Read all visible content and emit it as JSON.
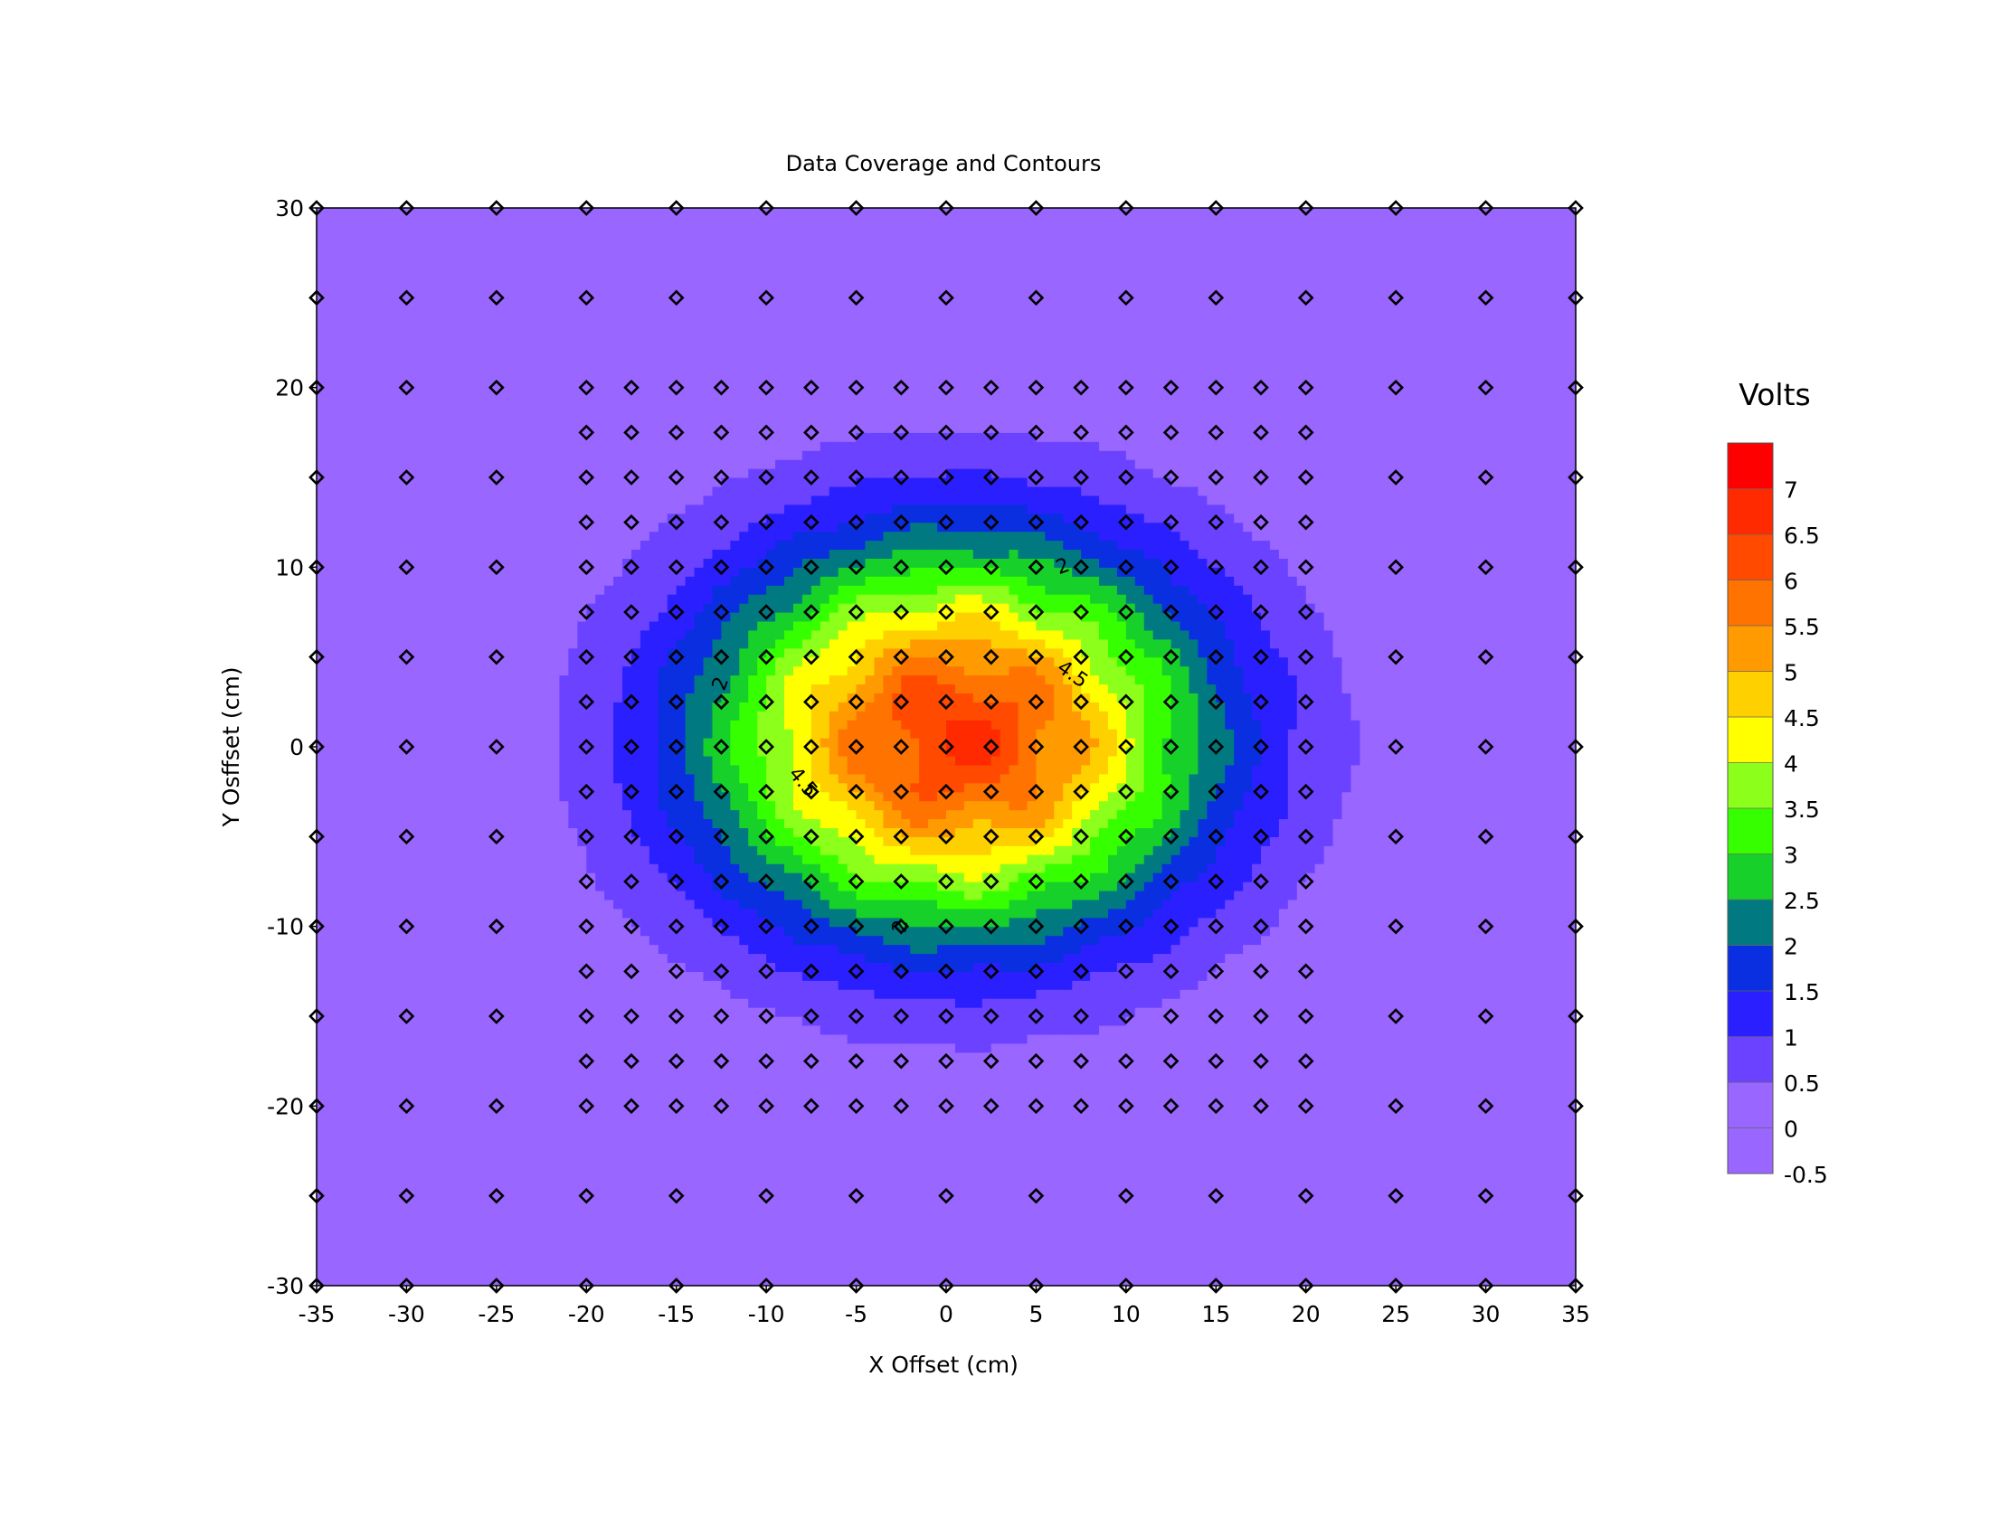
{
  "chart_data": {
    "type": "heatmap",
    "subtype": "filled-contour-with-sample-points",
    "title": "Data Coverage and Contours",
    "xlabel": "X Offset (cm)",
    "ylabel": "Y Osffset (cm)",
    "xlim": [
      -35,
      35
    ],
    "ylim": [
      -30,
      30
    ],
    "xticks": [
      -35,
      -30,
      -25,
      -20,
      -15,
      -10,
      -5,
      0,
      5,
      10,
      15,
      20,
      25,
      30,
      35
    ],
    "yticks": [
      30,
      20,
      10,
      0,
      -10,
      -20,
      -30
    ],
    "grid": false,
    "colorbar": {
      "title": "Volts",
      "placement": "right",
      "levels": [
        -0.5,
        0,
        0.5,
        1,
        1.5,
        2,
        2.5,
        3,
        3.5,
        4,
        4.5,
        5,
        5.5,
        6,
        6.5,
        7,
        7.5
      ],
      "tick_labels": [
        "7",
        "6.5",
        "6",
        "5.5",
        "5",
        "4.5",
        "4",
        "3.5",
        "3",
        "2.5",
        "2",
        "1.5",
        "1",
        "0.5",
        "0",
        "-0.5"
      ],
      "colors": [
        "#9966ff",
        "#9966ff",
        "#6a42ff",
        "#2a1fff",
        "#0a2fe0",
        "#007a80",
        "#17d12a",
        "#36ff00",
        "#8cff1a",
        "#ffff00",
        "#ffd000",
        "#ff9a00",
        "#ff7300",
        "#ff4a00",
        "#ff2a00",
        "#ff0000"
      ]
    },
    "field": {
      "description_model": "gaussian",
      "peak_value": 6.5,
      "center": [
        0.5,
        0.5
      ],
      "sigma_x": 9.8,
      "sigma_y": 7.6,
      "background": 0
    },
    "contour_labels": [
      {
        "text": "2",
        "x": 6.5,
        "y": 10,
        "rotate": -20
      },
      {
        "text": "2",
        "x": -12.5,
        "y": 3.5,
        "rotate": -70
      },
      {
        "text": "2",
        "x": -2.5,
        "y": -10,
        "rotate": -80
      },
      {
        "text": "4.5",
        "x": 7,
        "y": 4,
        "rotate": 35
      },
      {
        "text": "4.5",
        "x": -8,
        "y": -2,
        "rotate": 50
      }
    ],
    "sample_points": {
      "outer_x": [
        -35,
        -30,
        -25,
        -20,
        -15,
        -10,
        -5,
        0,
        5,
        10,
        15,
        20,
        25,
        30,
        35
      ],
      "outer_y": [
        30,
        25,
        20,
        15,
        10,
        5,
        0,
        -5,
        -10,
        -15,
        -20,
        -25,
        -30
      ],
      "inner_x": [
        -20,
        -17.5,
        -15,
        -12.5,
        -10,
        -7.5,
        -5,
        -2.5,
        0,
        2.5,
        5,
        7.5,
        10,
        12.5,
        15,
        17.5,
        20
      ],
      "inner_y": [
        20,
        17.5,
        15,
        12.5,
        10,
        7.5,
        5,
        2.5,
        0,
        -2.5,
        -5,
        -7.5,
        -10,
        -12.5,
        -15,
        -17.5,
        -20
      ]
    }
  }
}
